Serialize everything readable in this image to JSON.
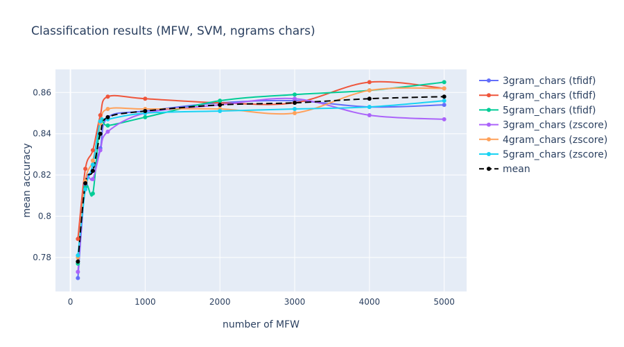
{
  "chart_data": {
    "type": "line",
    "title": "Classification results (MFW, SVM, ngrams chars)",
    "xlabel": "number of MFW",
    "ylabel": "mean accuracy",
    "xlim": [
      -200,
      5300
    ],
    "ylim": [
      0.7635,
      0.8712
    ],
    "xticks": [
      0,
      1000,
      2000,
      3000,
      4000,
      5000
    ],
    "yticks": [
      0.78,
      0.8,
      0.82,
      0.84,
      0.86
    ],
    "ytick_labels": [
      "0.78",
      "0.8",
      "0.82",
      "0.84",
      "0.86"
    ],
    "grid": true,
    "legend_position": "right",
    "x": [
      100,
      200,
      300,
      400,
      500,
      1000,
      2000,
      3000,
      4000,
      5000
    ],
    "series": [
      {
        "name": "3gram_chars (tfidf)",
        "color": "#636efa",
        "dash": false,
        "values": [
          0.77,
          0.815,
          0.822,
          0.833,
          0.848,
          0.851,
          0.855,
          0.856,
          0.853,
          0.854
        ]
      },
      {
        "name": "4gram_chars (tfidf)",
        "color": "#ef553b",
        "dash": false,
        "values": [
          0.789,
          0.823,
          0.832,
          0.849,
          0.858,
          0.857,
          0.855,
          0.855,
          0.865,
          0.862
        ]
      },
      {
        "name": "5gram_chars (tfidf)",
        "color": "#00cc96",
        "dash": false,
        "values": [
          0.777,
          0.814,
          0.811,
          0.846,
          0.844,
          0.848,
          0.856,
          0.859,
          0.861,
          0.865
        ]
      },
      {
        "name": "3gram_chars (zscore)",
        "color": "#ab63fa",
        "dash": false,
        "values": [
          0.773,
          0.816,
          0.818,
          0.832,
          0.841,
          0.85,
          0.854,
          0.857,
          0.849,
          0.847
        ]
      },
      {
        "name": "4gram_chars (zscore)",
        "color": "#ffa15a",
        "dash": false,
        "values": [
          0.78,
          0.817,
          0.827,
          0.845,
          0.852,
          0.852,
          0.852,
          0.85,
          0.861,
          0.862
        ]
      },
      {
        "name": "5gram_chars (zscore)",
        "color": "#19d3f3",
        "dash": false,
        "values": [
          0.781,
          0.813,
          0.825,
          0.846,
          0.847,
          0.85,
          0.851,
          0.852,
          0.853,
          0.856
        ]
      },
      {
        "name": "mean",
        "color": "#000000",
        "dash": true,
        "values": [
          0.778,
          0.816,
          0.822,
          0.84,
          0.848,
          0.851,
          0.854,
          0.855,
          0.857,
          0.858
        ]
      }
    ]
  }
}
